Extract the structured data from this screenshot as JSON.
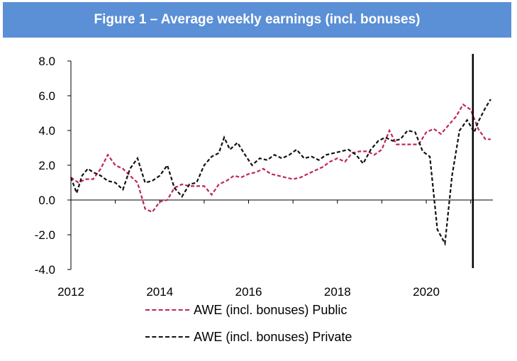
{
  "colors": {
    "title_bg": "#5b8fd6",
    "public": "#c0245c",
    "private": "#111111",
    "axis": "#000000"
  },
  "chart_data": {
    "type": "line",
    "title": "Figure 1 – Average weekly earnings (incl. bonuses)",
    "xlabel": "",
    "ylabel": "",
    "xlim": [
      2012,
      2021.5
    ],
    "ylim": [
      -4.0,
      8.0
    ],
    "x_ticks": [
      "2012",
      "2014",
      "2016",
      "2018",
      "2020"
    ],
    "y_ticks": [
      "8.0",
      "6.0",
      "4.0",
      "2.0",
      "0.0",
      "-2.0",
      "-4.0"
    ],
    "grid": false,
    "legend_position": "bottom",
    "vertical_marker_x": 2021.05,
    "series": [
      {
        "name": "AWE (incl. bonuses) Public",
        "style": "dashed",
        "color": "#c0245c",
        "x": [
          2012.0,
          2012.17,
          2012.33,
          2012.5,
          2012.67,
          2012.83,
          2013.0,
          2013.17,
          2013.33,
          2013.5,
          2013.67,
          2013.83,
          2014.0,
          2014.17,
          2014.33,
          2014.5,
          2014.67,
          2014.83,
          2015.0,
          2015.17,
          2015.33,
          2015.5,
          2015.67,
          2015.83,
          2016.0,
          2016.17,
          2016.33,
          2016.5,
          2016.67,
          2016.83,
          2017.0,
          2017.17,
          2017.33,
          2017.5,
          2017.67,
          2017.83,
          2018.0,
          2018.17,
          2018.33,
          2018.5,
          2018.67,
          2018.83,
          2019.0,
          2019.17,
          2019.33,
          2019.5,
          2019.67,
          2019.83,
          2020.0,
          2020.17,
          2020.33,
          2020.5,
          2020.67,
          2020.83,
          2021.0,
          2021.17,
          2021.33,
          2021.45
        ],
        "y": [
          1.3,
          1.0,
          1.2,
          1.2,
          1.8,
          2.6,
          2.0,
          1.8,
          1.4,
          1.0,
          -0.5,
          -0.7,
          -0.1,
          0.0,
          0.7,
          0.9,
          0.8,
          0.8,
          0.8,
          0.3,
          0.9,
          1.1,
          1.4,
          1.3,
          1.5,
          1.6,
          1.8,
          1.5,
          1.4,
          1.3,
          1.2,
          1.3,
          1.5,
          1.7,
          1.9,
          2.2,
          2.4,
          2.2,
          2.7,
          2.8,
          2.8,
          2.6,
          2.9,
          4.0,
          3.2,
          3.2,
          3.2,
          3.2,
          3.9,
          4.1,
          3.8,
          4.3,
          4.8,
          5.5,
          5.2,
          4.1,
          3.5,
          3.5
        ]
      },
      {
        "name": "AWE (incl. bonuses) Private",
        "style": "dashed",
        "color": "#111111",
        "x": [
          2012.0,
          2012.13,
          2012.25,
          2012.38,
          2012.5,
          2012.67,
          2012.83,
          2013.0,
          2013.17,
          2013.33,
          2013.5,
          2013.67,
          2013.83,
          2014.0,
          2014.17,
          2014.33,
          2014.5,
          2014.67,
          2014.83,
          2015.0,
          2015.17,
          2015.33,
          2015.45,
          2015.58,
          2015.75,
          2015.92,
          2016.08,
          2016.25,
          2016.42,
          2016.58,
          2016.75,
          2016.92,
          2017.08,
          2017.25,
          2017.42,
          2017.58,
          2017.75,
          2017.92,
          2018.08,
          2018.25,
          2018.42,
          2018.58,
          2018.75,
          2018.92,
          2019.08,
          2019.25,
          2019.42,
          2019.58,
          2019.75,
          2019.92,
          2020.08,
          2020.25,
          2020.42,
          2020.58,
          2020.75,
          2020.92,
          2021.08,
          2021.17,
          2021.33,
          2021.45
        ],
        "y": [
          1.3,
          0.4,
          1.4,
          1.8,
          1.6,
          1.4,
          1.1,
          1.0,
          0.6,
          1.8,
          2.4,
          1.0,
          1.1,
          1.4,
          2.0,
          0.7,
          0.2,
          0.9,
          1.0,
          2.0,
          2.5,
          2.7,
          3.6,
          2.9,
          3.3,
          2.6,
          2.0,
          2.4,
          2.3,
          2.6,
          2.4,
          2.6,
          2.9,
          2.4,
          2.5,
          2.3,
          2.6,
          2.7,
          2.8,
          2.9,
          2.6,
          2.1,
          2.9,
          3.4,
          3.6,
          3.4,
          3.5,
          4.0,
          3.9,
          2.8,
          2.5,
          -1.7,
          -2.5,
          1.4,
          4.0,
          4.6,
          3.9,
          4.5,
          5.3,
          5.8
        ]
      }
    ]
  }
}
